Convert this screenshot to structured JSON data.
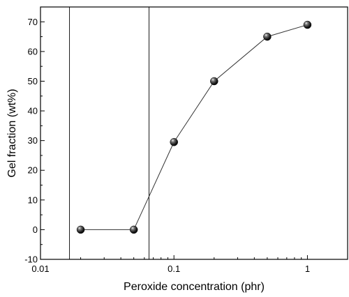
{
  "chart_data": {
    "type": "scatter",
    "title": "",
    "xlabel": "Peroxide concentration (phr)",
    "ylabel": "Gel fraction (wt%)",
    "xscale": "log",
    "xlim": [
      0.01,
      2
    ],
    "ylim": [
      -10,
      75
    ],
    "x_ticks": [
      0.01,
      0.1,
      1
    ],
    "x_tick_labels": [
      "0.01",
      "0.1",
      "1"
    ],
    "y_ticks": [
      -10,
      0,
      10,
      20,
      30,
      40,
      50,
      60,
      70
    ],
    "y_tick_labels": [
      "-10",
      "0",
      "10",
      "20",
      "30",
      "40",
      "50",
      "60",
      "70"
    ],
    "grid": false,
    "legend": "none",
    "marker": "sphere",
    "connect_points": true,
    "vertical_lines": [
      0.0165,
      0.065
    ],
    "series": [
      {
        "x": [
          0.02,
          0.05,
          0.1,
          0.2,
          0.5,
          1
        ],
        "y": [
          0,
          0,
          29.5,
          50,
          65,
          69
        ]
      }
    ]
  }
}
